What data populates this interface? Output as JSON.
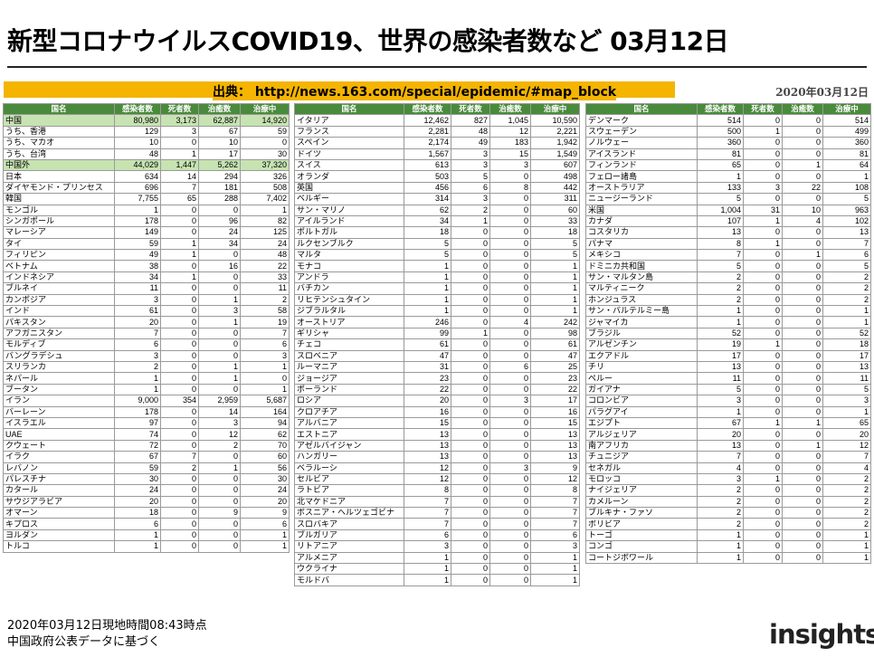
{
  "title": "新型コロナウイルスCOVID19、世界の感染者数など 03月12日",
  "source": "出典： http://news.163.com/special/epidemic/#map_block",
  "date": "2020年03月12日",
  "headers": [
    "国名",
    "感染者数",
    "死者数",
    "治癒数",
    "治療中"
  ],
  "table1": [
    [
      "中国",
      "80,980",
      "3,173",
      "62,887",
      "14,920"
    ],
    [
      "うち、香港",
      "129",
      "3",
      "67",
      "59"
    ],
    [
      "うち、マカオ",
      "10",
      "0",
      "10",
      "0"
    ],
    [
      "うち、台湾",
      "48",
      "1",
      "17",
      "30"
    ],
    [
      "中国外",
      "44,029",
      "1,447",
      "5,262",
      "37,320"
    ],
    [
      "日本",
      "634",
      "14",
      "294",
      "326"
    ],
    [
      "ダイヤモンド・プリンセス",
      "696",
      "7",
      "181",
      "508"
    ],
    [
      "韓国",
      "7,755",
      "65",
      "288",
      "7,402"
    ],
    [
      "モンゴル",
      "1",
      "0",
      "0",
      "1"
    ],
    [
      "シンガポール",
      "178",
      "0",
      "96",
      "82"
    ],
    [
      "マレーシア",
      "149",
      "0",
      "24",
      "125"
    ],
    [
      "タイ",
      "59",
      "1",
      "34",
      "24"
    ],
    [
      "フィリピン",
      "49",
      "1",
      "0",
      "48"
    ],
    [
      "ベトナム",
      "38",
      "0",
      "16",
      "22"
    ],
    [
      "インドネシア",
      "34",
      "1",
      "0",
      "33"
    ],
    [
      "ブルネイ",
      "11",
      "0",
      "0",
      "11"
    ],
    [
      "カンボジア",
      "3",
      "0",
      "1",
      "2"
    ],
    [
      "インド",
      "61",
      "0",
      "3",
      "58"
    ],
    [
      "パキスタン",
      "20",
      "0",
      "1",
      "19"
    ],
    [
      "アフガニスタン",
      "7",
      "0",
      "0",
      "7"
    ],
    [
      "モルディブ",
      "6",
      "0",
      "0",
      "6"
    ],
    [
      "バングラデシュ",
      "3",
      "0",
      "0",
      "3"
    ],
    [
      "スリランカ",
      "2",
      "0",
      "1",
      "1"
    ],
    [
      "ネパール",
      "1",
      "0",
      "1",
      "0"
    ],
    [
      "ブータン",
      "1",
      "0",
      "0",
      "1"
    ],
    [
      "イラン",
      "9,000",
      "354",
      "2,959",
      "5,687"
    ],
    [
      "バーレーン",
      "178",
      "0",
      "14",
      "164"
    ],
    [
      "イスラエル",
      "97",
      "0",
      "3",
      "94"
    ],
    [
      "UAE",
      "74",
      "0",
      "12",
      "62"
    ],
    [
      "クウェート",
      "72",
      "0",
      "2",
      "70"
    ],
    [
      "イラク",
      "67",
      "7",
      "0",
      "60"
    ],
    [
      "レバノン",
      "59",
      "2",
      "1",
      "56"
    ],
    [
      "パレスチナ",
      "30",
      "0",
      "0",
      "30"
    ],
    [
      "カタール",
      "24",
      "0",
      "0",
      "24"
    ],
    [
      "サウジアラビア",
      "20",
      "0",
      "0",
      "20"
    ],
    [
      "オマーン",
      "18",
      "0",
      "9",
      "9"
    ],
    [
      "キプロス",
      "6",
      "0",
      "0",
      "6"
    ],
    [
      "ヨルダン",
      "1",
      "0",
      "0",
      "1"
    ],
    [
      "トルコ",
      "1",
      "0",
      "0",
      "1"
    ]
  ],
  "table2": [
    [
      "イタリア",
      "12,462",
      "827",
      "1,045",
      "10,590"
    ],
    [
      "フランス",
      "2,281",
      "48",
      "12",
      "2,221"
    ],
    [
      "スペイン",
      "2,174",
      "49",
      "183",
      "1,942"
    ],
    [
      "ドイツ",
      "1,567",
      "3",
      "15",
      "1,549"
    ],
    [
      "スイス",
      "613",
      "3",
      "3",
      "607"
    ],
    [
      "オランダ",
      "503",
      "5",
      "0",
      "498"
    ],
    [
      "英国",
      "456",
      "6",
      "8",
      "442"
    ],
    [
      "ベルギー",
      "314",
      "3",
      "0",
      "311"
    ],
    [
      "サン・マリノ",
      "62",
      "2",
      "0",
      "60"
    ],
    [
      "アイルランド",
      "34",
      "1",
      "0",
      "33"
    ],
    [
      "ポルトガル",
      "18",
      "0",
      "0",
      "18"
    ],
    [
      "ルクセンブルク",
      "5",
      "0",
      "0",
      "5"
    ],
    [
      "マルタ",
      "5",
      "0",
      "0",
      "5"
    ],
    [
      "モナコ",
      "1",
      "0",
      "0",
      "1"
    ],
    [
      "アンドラ",
      "1",
      "0",
      "0",
      "1"
    ],
    [
      "バチカン",
      "1",
      "0",
      "0",
      "1"
    ],
    [
      "リヒテンシュタイン",
      "1",
      "0",
      "0",
      "1"
    ],
    [
      "ジブラルタル",
      "1",
      "0",
      "0",
      "1"
    ],
    [
      "オーストリア",
      "246",
      "0",
      "4",
      "242"
    ],
    [
      "ギリシャ",
      "99",
      "1",
      "0",
      "98"
    ],
    [
      "チェコ",
      "61",
      "0",
      "0",
      "61"
    ],
    [
      "スロベニア",
      "47",
      "0",
      "0",
      "47"
    ],
    [
      "ルーマニア",
      "31",
      "0",
      "6",
      "25"
    ],
    [
      "ジョージア",
      "23",
      "0",
      "0",
      "23"
    ],
    [
      "ポーランド",
      "22",
      "0",
      "0",
      "22"
    ],
    [
      "ロシア",
      "20",
      "0",
      "3",
      "17"
    ],
    [
      "クロアチア",
      "16",
      "0",
      "0",
      "16"
    ],
    [
      "アルバニア",
      "15",
      "0",
      "0",
      "15"
    ],
    [
      "エストニア",
      "13",
      "0",
      "0",
      "13"
    ],
    [
      "アゼルバイジャン",
      "13",
      "0",
      "0",
      "13"
    ],
    [
      "ハンガリー",
      "13",
      "0",
      "0",
      "13"
    ],
    [
      "ベラルーシ",
      "12",
      "0",
      "3",
      "9"
    ],
    [
      "セルビア",
      "12",
      "0",
      "0",
      "12"
    ],
    [
      "ラトビア",
      "8",
      "0",
      "0",
      "8"
    ],
    [
      "北マケドニア",
      "7",
      "0",
      "0",
      "7"
    ],
    [
      "ボスニア・ヘルツェゴビナ",
      "7",
      "0",
      "0",
      "7"
    ],
    [
      "スロバキア",
      "7",
      "0",
      "0",
      "7"
    ],
    [
      "ブルガリア",
      "6",
      "0",
      "0",
      "6"
    ],
    [
      "リトアニア",
      "3",
      "0",
      "0",
      "3"
    ],
    [
      "アルメニア",
      "1",
      "0",
      "0",
      "1"
    ],
    [
      "ウクライナ",
      "1",
      "0",
      "0",
      "1"
    ],
    [
      "モルドバ",
      "1",
      "0",
      "0",
      "1"
    ]
  ],
  "table3": [
    [
      "デンマーク",
      "514",
      "0",
      "0",
      "514"
    ],
    [
      "スウェーデン",
      "500",
      "1",
      "0",
      "499"
    ],
    [
      "ノルウェー",
      "360",
      "0",
      "0",
      "360"
    ],
    [
      "アイスランド",
      "81",
      "0",
      "0",
      "81"
    ],
    [
      "フィンランド",
      "65",
      "0",
      "1",
      "64"
    ],
    [
      "フェロー諸島",
      "1",
      "0",
      "0",
      "1"
    ],
    [
      "オーストラリア",
      "133",
      "3",
      "22",
      "108"
    ],
    [
      "ニュージーランド",
      "5",
      "0",
      "0",
      "5"
    ],
    [
      "米国",
      "1,004",
      "31",
      "10",
      "963"
    ],
    [
      "カナダ",
      "107",
      "1",
      "4",
      "102"
    ],
    [
      "コスタリカ",
      "13",
      "0",
      "0",
      "13"
    ],
    [
      "パナマ",
      "8",
      "1",
      "0",
      "7"
    ],
    [
      "メキシコ",
      "7",
      "0",
      "1",
      "6"
    ],
    [
      "ドミニカ共和国",
      "5",
      "0",
      "0",
      "5"
    ],
    [
      "サン・マルタン島",
      "2",
      "0",
      "0",
      "2"
    ],
    [
      "マルティニーク",
      "2",
      "0",
      "0",
      "2"
    ],
    [
      "ホンジュラス",
      "2",
      "0",
      "0",
      "2"
    ],
    [
      "サン・バルテルミー島",
      "1",
      "0",
      "0",
      "1"
    ],
    [
      "ジャマイカ",
      "1",
      "0",
      "0",
      "1"
    ],
    [
      "ブラジル",
      "52",
      "0",
      "0",
      "52"
    ],
    [
      "アルゼンチン",
      "19",
      "1",
      "0",
      "18"
    ],
    [
      "エクアドル",
      "17",
      "0",
      "0",
      "17"
    ],
    [
      "チリ",
      "13",
      "0",
      "0",
      "13"
    ],
    [
      "ペルー",
      "11",
      "0",
      "0",
      "11"
    ],
    [
      "ガイアナ",
      "5",
      "0",
      "0",
      "5"
    ],
    [
      "コロンビア",
      "3",
      "0",
      "0",
      "3"
    ],
    [
      "パラグアイ",
      "1",
      "0",
      "0",
      "1"
    ],
    [
      "エジプト",
      "67",
      "1",
      "1",
      "65"
    ],
    [
      "アルジェリア",
      "20",
      "0",
      "0",
      "20"
    ],
    [
      "南アフリカ",
      "13",
      "0",
      "1",
      "12"
    ],
    [
      "チュニジア",
      "7",
      "0",
      "0",
      "7"
    ],
    [
      "セネガル",
      "4",
      "0",
      "0",
      "4"
    ],
    [
      "モロッコ",
      "3",
      "1",
      "0",
      "2"
    ],
    [
      "ナイジェリア",
      "2",
      "0",
      "0",
      "2"
    ],
    [
      "カメルーン",
      "2",
      "0",
      "0",
      "2"
    ],
    [
      "ブルキナ・ファソ",
      "2",
      "0",
      "0",
      "2"
    ],
    [
      "ボリビア",
      "2",
      "0",
      "0",
      "2"
    ],
    [
      "トーゴ",
      "1",
      "0",
      "0",
      "1"
    ],
    [
      "コンゴ",
      "1",
      "0",
      "0",
      "1"
    ],
    [
      "コートジボワール",
      "1",
      "0",
      "0",
      "1"
    ]
  ],
  "footer": {
    "line1": "2020年03月12日現地時間08:43時点",
    "line2": "中国政府公表データに基づく"
  },
  "logo": "insights",
  "colors": {
    "header_green": "#4a8a3c",
    "highlight_green": "#c7e3b2",
    "source_bar": "#f4b400",
    "logo_dot": "#e02020"
  }
}
